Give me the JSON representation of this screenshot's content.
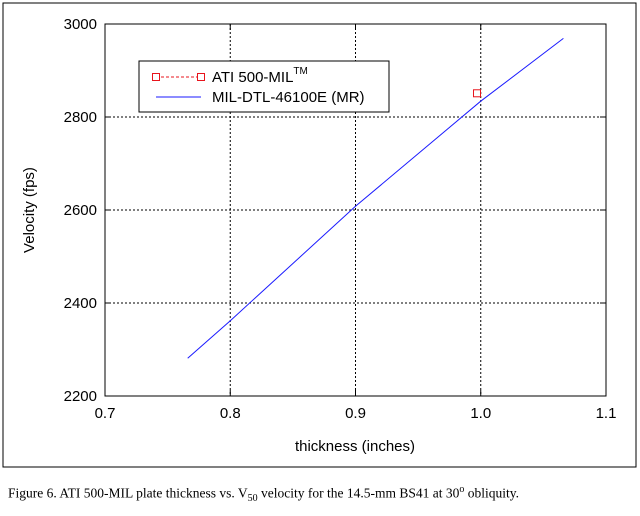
{
  "chart_data": {
    "type": "line",
    "xlabel": "thickness (inches)",
    "ylabel": "Velocity (fps)",
    "xlim": [
      0.7,
      1.1
    ],
    "ylim": [
      2200,
      3000
    ],
    "xticks": [
      0.7,
      0.8,
      0.9,
      1.0,
      1.1
    ],
    "xtick_labels": [
      "0.7",
      "0.8",
      "0.9",
      "1.0",
      "1.1"
    ],
    "yticks": [
      2200,
      2400,
      2600,
      2800,
      3000
    ],
    "ytick_labels": [
      "2200",
      "2400",
      "2600",
      "2800",
      "3000"
    ],
    "grid": true,
    "legend_position": "top-left",
    "series": [
      {
        "name": "ATI 500-MIL",
        "name_superscript": "TM",
        "style": "markers",
        "marker": "square-open",
        "color": "#e8141c",
        "x": [
          0.997
        ],
        "y": [
          2851
        ]
      },
      {
        "name": "MIL-DTL-46100E (MR)",
        "style": "line",
        "color": "#1a1aff",
        "x": [
          0.766,
          0.8,
          0.9,
          1.0,
          1.066
        ],
        "y": [
          2281,
          2362,
          2608,
          2834,
          2969
        ]
      }
    ]
  },
  "caption": {
    "prefix": "Figure 6.  ATI 500-MIL plate thickness vs. V",
    "subscript": "50",
    "middle": " velocity for the 14.5-mm BS41 at 30",
    "superscript": "o",
    "suffix": " obliquity."
  }
}
